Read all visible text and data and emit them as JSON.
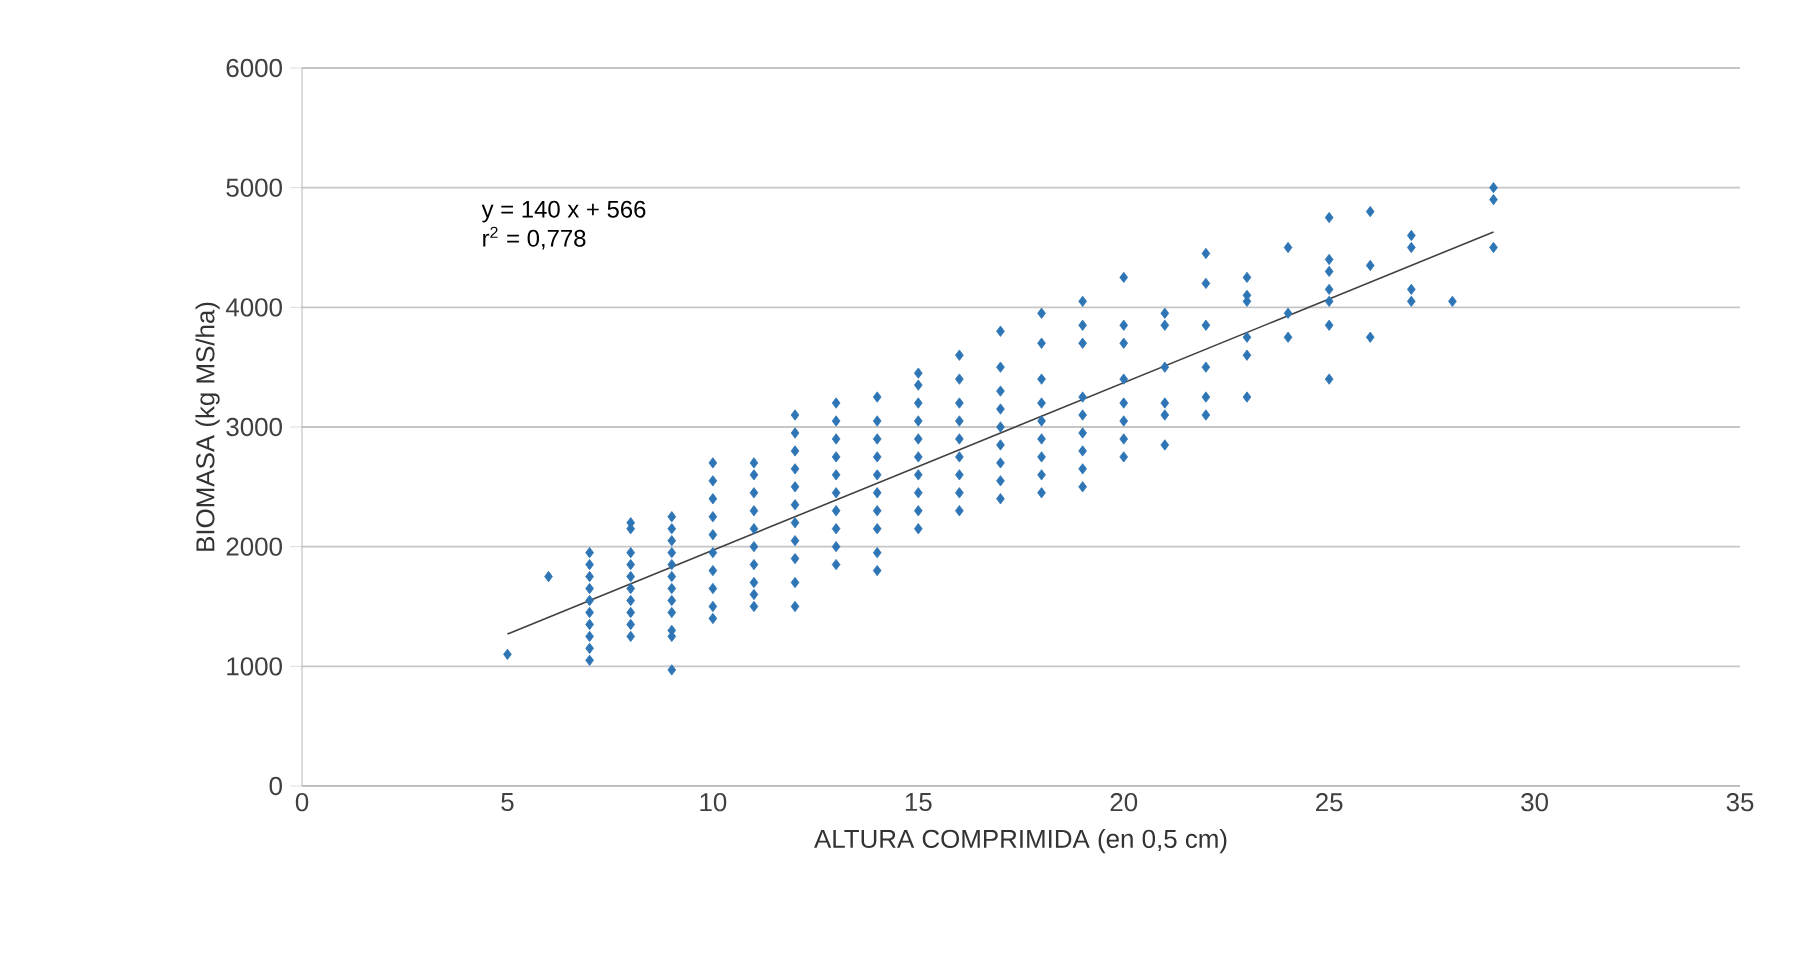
{
  "chart_data": {
    "type": "scatter",
    "xlabel": "ALTURA COMPRIMIDA (en 0,5 cm)",
    "ylabel": "BIOMASA (kg MS/ha)",
    "annotations": [
      "y = 140 x + 566",
      "r$^{2}$ = 0,778"
    ],
    "xlim": [
      0,
      35
    ],
    "xticks": [
      0,
      5,
      10,
      15,
      20,
      25,
      30,
      35
    ],
    "ylim": [
      0,
      6000
    ],
    "yticks": [
      0,
      1000,
      2000,
      3000,
      4000,
      5000,
      6000
    ],
    "grid": "y",
    "marker": "diamond",
    "series": [
      {
        "color": "#2e75b6",
        "x": [
          5,
          6,
          7,
          7,
          7,
          7,
          7,
          7,
          7,
          7,
          7,
          7,
          8,
          8,
          8,
          8,
          8,
          8,
          8,
          8,
          8,
          8,
          9,
          9,
          9,
          9,
          9,
          9,
          9,
          9,
          9,
          9,
          9,
          9,
          10,
          10,
          10,
          10,
          10,
          10,
          10,
          10,
          10,
          10,
          11,
          11,
          11,
          11,
          11,
          11,
          11,
          11,
          11,
          11,
          12,
          12,
          12,
          12,
          12,
          12,
          12,
          12,
          12,
          12,
          12,
          13,
          13,
          13,
          13,
          13,
          13,
          13,
          13,
          13,
          13,
          14,
          14,
          14,
          14,
          14,
          14,
          14,
          14,
          14,
          14,
          15,
          15,
          15,
          15,
          15,
          15,
          15,
          15,
          15,
          15,
          16,
          16,
          16,
          16,
          16,
          16,
          16,
          16,
          16,
          17,
          17,
          17,
          17,
          17,
          17,
          17,
          17,
          17,
          18,
          18,
          18,
          18,
          18,
          18,
          18,
          18,
          18,
          19,
          19,
          19,
          19,
          19,
          19,
          19,
          19,
          19,
          20,
          20,
          20,
          20,
          20,
          20,
          20,
          20,
          21,
          21,
          21,
          21,
          21,
          21,
          22,
          22,
          22,
          22,
          22,
          22,
          23,
          23,
          23,
          23,
          23,
          23,
          24,
          24,
          24,
          25,
          25,
          25,
          25,
          25,
          25,
          25,
          26,
          26,
          26,
          27,
          27,
          27,
          27,
          28,
          29,
          29,
          29
        ],
        "values": [
          1100,
          1750,
          1050,
          1150,
          1250,
          1350,
          1450,
          1550,
          1650,
          1750,
          1850,
          1950,
          1250,
          1350,
          1450,
          1550,
          1650,
          1750,
          1850,
          1950,
          2150,
          2200,
          970,
          1250,
          1300,
          1450,
          1550,
          1650,
          1750,
          1850,
          1950,
          2050,
          2150,
          2250,
          1400,
          1500,
          1650,
          1800,
          1950,
          2100,
          2250,
          2400,
          2550,
          2700,
          1500,
          1600,
          1700,
          1850,
          2000,
          2150,
          2300,
          2450,
          2600,
          2700,
          1500,
          1700,
          1900,
          2050,
          2200,
          2350,
          2500,
          2650,
          2800,
          2950,
          3100,
          1850,
          2000,
          2150,
          2300,
          2450,
          2600,
          2750,
          2900,
          3050,
          3200,
          1800,
          1950,
          2150,
          2300,
          2450,
          2600,
          2750,
          2900,
          3050,
          3250,
          2150,
          2300,
          2450,
          2600,
          2750,
          2900,
          3050,
          3200,
          3350,
          3450,
          2300,
          2450,
          2600,
          2750,
          2900,
          3050,
          3200,
          3400,
          3600,
          2400,
          2550,
          2700,
          2850,
          3000,
          3150,
          3300,
          3500,
          3800,
          2450,
          2600,
          2750,
          2900,
          3050,
          3200,
          3400,
          3700,
          3950,
          2500,
          2650,
          2800,
          2950,
          3100,
          3250,
          3700,
          3850,
          4050,
          2750,
          2900,
          3050,
          3200,
          3400,
          3700,
          3850,
          4250,
          2850,
          3100,
          3200,
          3500,
          3850,
          3950,
          3100,
          3250,
          3500,
          3850,
          4200,
          4450,
          3250,
          3600,
          3750,
          4050,
          4100,
          4250,
          3750,
          3950,
          4500,
          3400,
          3850,
          4050,
          4150,
          4300,
          4400,
          4750,
          3750,
          4350,
          4800,
          4050,
          4150,
          4500,
          4600,
          4050,
          4500,
          4900,
          5000
        ]
      },
      {
        "type": "line",
        "color": "#404040",
        "marker": "none",
        "x": [
          5,
          29
        ],
        "values": [
          1270,
          4630
        ]
      }
    ]
  }
}
